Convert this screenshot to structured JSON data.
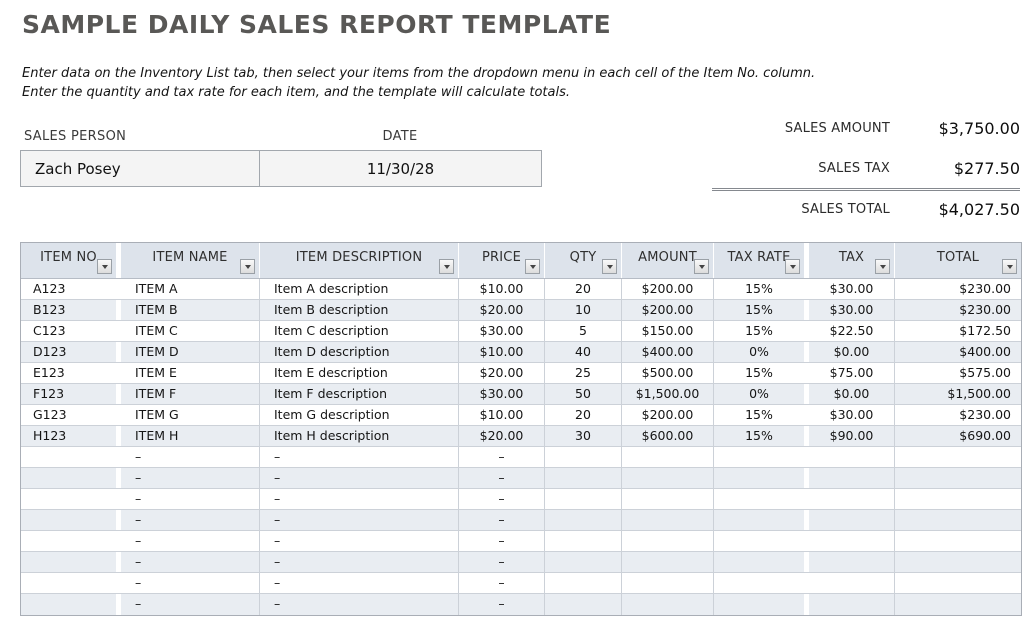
{
  "page": {
    "title": "SAMPLE DAILY SALES REPORT TEMPLATE",
    "description_line1": "Enter data on the Inventory List tab, then select your items from the dropdown menu in each cell of the Item No. column.",
    "description_line2": "Enter the quantity and tax rate for each item, and the template will calculate totals."
  },
  "form": {
    "sales_person_label": "SALES PERSON",
    "sales_person_value": "Zach Posey",
    "date_label": "DATE",
    "date_value": "11/30/28"
  },
  "summary": {
    "rows": [
      {
        "label": "SALES AMOUNT",
        "value": "$3,750.00"
      },
      {
        "label": "SALES TAX",
        "value": "$277.50"
      },
      {
        "label": "SALES TOTAL",
        "value": "$4,027.50"
      }
    ]
  },
  "table": {
    "columns": [
      "ITEM NO",
      "ITEM NAME",
      "ITEM DESCRIPTION",
      "PRICE",
      "QTY",
      "AMOUNT",
      "TAX RATE",
      "TAX",
      "TOTAL"
    ],
    "rows": [
      [
        "A123",
        "ITEM A",
        "Item A description",
        "$10.00",
        "20",
        "$200.00",
        "15%",
        "$30.00",
        "$230.00"
      ],
      [
        "B123",
        "ITEM B",
        "Item B description",
        "$20.00",
        "10",
        "$200.00",
        "15%",
        "$30.00",
        "$230.00"
      ],
      [
        "C123",
        "ITEM C",
        "Item C description",
        "$30.00",
        "5",
        "$150.00",
        "15%",
        "$22.50",
        "$172.50"
      ],
      [
        "D123",
        "ITEM D",
        "Item D description",
        "$10.00",
        "40",
        "$400.00",
        "0%",
        "$0.00",
        "$400.00"
      ],
      [
        "E123",
        "ITEM E",
        "Item E description",
        "$20.00",
        "25",
        "$500.00",
        "15%",
        "$75.00",
        "$575.00"
      ],
      [
        "F123",
        "ITEM F",
        "Item F description",
        "$30.00",
        "50",
        "$1,500.00",
        "0%",
        "$0.00",
        "$1,500.00"
      ],
      [
        "G123",
        "ITEM G",
        "Item G description",
        "$10.00",
        "20",
        "$200.00",
        "15%",
        "$30.00",
        "$230.00"
      ],
      [
        "H123",
        "ITEM H",
        "Item H description",
        "$20.00",
        "30",
        "$600.00",
        "15%",
        "$90.00",
        "$690.00"
      ]
    ],
    "empty_rows": 8,
    "empty_row_cells": [
      "",
      "–",
      "–",
      "–",
      "",
      "",
      "",
      "",
      ""
    ]
  },
  "colors": {
    "title": "#595856",
    "header_bg": "#dde3eb",
    "alt_row_bg": "#e9edf2",
    "form_box_bg": "#f4f4f4",
    "border": "#ccd1d8"
  }
}
